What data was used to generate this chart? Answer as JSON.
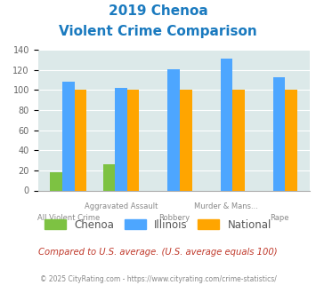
{
  "title_line1": "2019 Chenoa",
  "title_line2": "Violent Crime Comparison",
  "title_color": "#1a7abf",
  "categories": [
    "All Violent Crime",
    "Aggravated Assault",
    "Robbery",
    "Murder & Mans...",
    "Rape"
  ],
  "cat_top": [
    "",
    "Aggravated Assault",
    "",
    "Murder & Mans...",
    ""
  ],
  "cat_bottom": [
    "All Violent Crime",
    "",
    "Robbery",
    "",
    "Rape"
  ],
  "chenoa_values": [
    18,
    26,
    0,
    0,
    0
  ],
  "illinois_values": [
    108,
    102,
    121,
    131,
    113
  ],
  "national_values": [
    100,
    100,
    100,
    100,
    100
  ],
  "chenoa_color": "#7dc242",
  "illinois_color": "#4da6ff",
  "national_color": "#ffa500",
  "ylim": [
    0,
    140
  ],
  "yticks": [
    0,
    20,
    40,
    60,
    80,
    100,
    120,
    140
  ],
  "bg_color": "#dce9e9",
  "footnote1": "Compared to U.S. average. (U.S. average equals 100)",
  "footnote2": "© 2025 CityRating.com - https://www.cityrating.com/crime-statistics/",
  "footnote1_color": "#c0392b",
  "footnote2_color": "#888888"
}
